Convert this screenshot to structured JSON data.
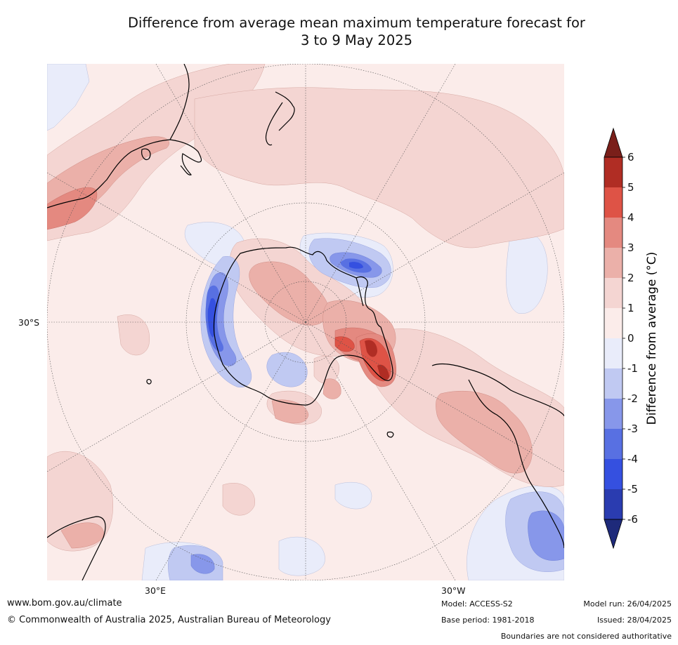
{
  "title_line1": "Difference from average mean maximum temperature forecast for",
  "title_line2": "3 to 9 May 2025",
  "map": {
    "lat_label": "30°S",
    "lon_label_east": "30°E",
    "lon_label_west": "30°W",
    "projection": "south polar stereographic",
    "colors": {
      "neg6": "#1e2a7a",
      "neg5": "#2a3cb0",
      "neg4": "#3550e0",
      "neg3": "#5870e2",
      "neg2": "#8797ea",
      "neg1": "#c0c9f2",
      "neg0": "#e9ecfa",
      "pos0": "#fbecea",
      "pos1": "#f4d5d2",
      "pos2": "#ebb0a9",
      "pos3": "#e48980",
      "pos4": "#de5346",
      "pos5": "#b02d24",
      "pos6": "#7a1f1a",
      "land_outline": "#000000"
    }
  },
  "colorbar": {
    "title": "Difference from average (°C)",
    "ticks": [
      "6",
      "5",
      "4",
      "3",
      "2",
      "1",
      "0",
      "-1",
      "-2",
      "-3",
      "-4",
      "-5",
      "-6"
    ]
  },
  "footer": {
    "url": "www.bom.gov.au/climate",
    "copyright": "© Commonwealth of Australia 2025, Australian Bureau of Meteorology",
    "model": "Model: ACCESS-S2",
    "base_period": "Base period: 1981-2018",
    "model_run": "Model run: 26/04/2025",
    "issued": "Issued: 28/04/2025",
    "disclaimer": "Boundaries are not considered authoritative"
  }
}
